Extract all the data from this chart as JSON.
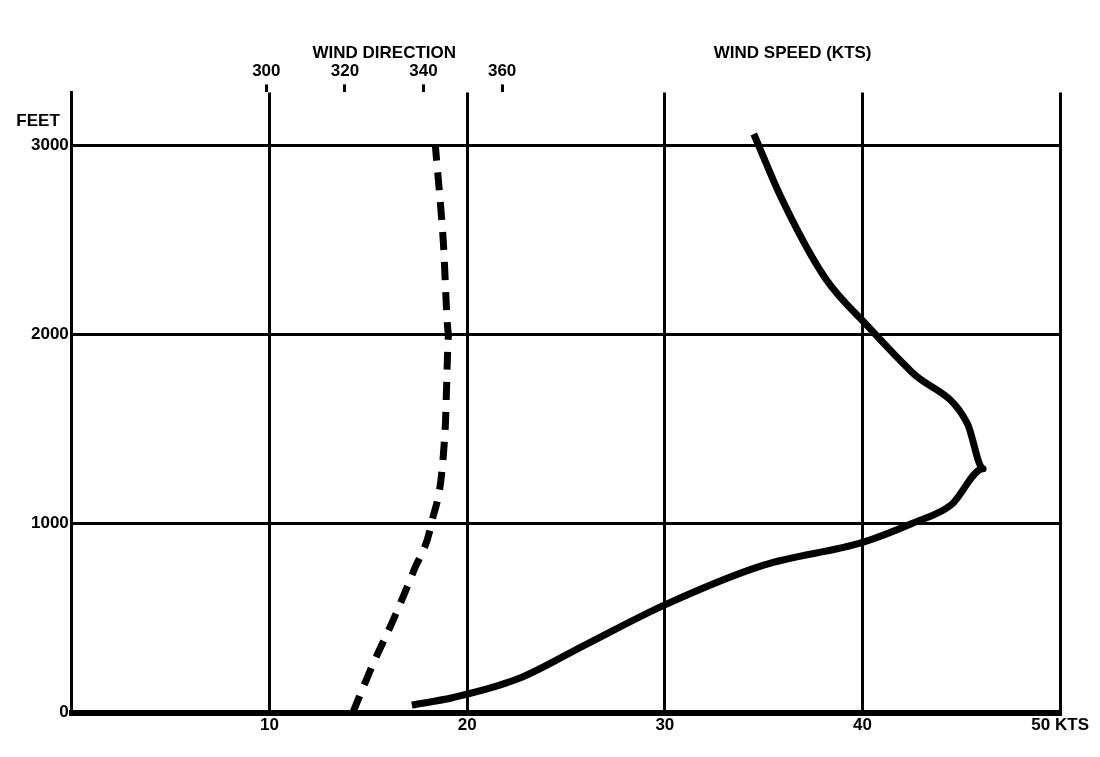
{
  "chart_data": {
    "type": "line",
    "x2label": "WIND DIRECTION",
    "ylabel": "FEET",
    "xlim": [
      0,
      50
    ],
    "xticks": [
      {
        "value": 0,
        "label": null
      },
      10,
      20,
      30,
      40,
      {
        "value": 50,
        "label": "50 KTS"
      }
    ],
    "x2lim": [
      250.5,
      502
    ],
    "x2ticks": [
      300,
      320,
      340,
      360
    ],
    "ylim": [
      0,
      3280
    ],
    "yticks": [
      0,
      1000,
      2000,
      3000
    ],
    "grid": true,
    "marker": "none",
    "series": [
      {
        "axis": "x2",
        "color": "#000000",
        "line_style": "dashed",
        "x": [
          322,
          327,
          332.5,
          337.5,
          342,
          345.5,
          346.4,
          345,
          343
        ],
        "values": [
          0,
          250,
          500,
          750,
          1000,
          1500,
          2000,
          2500,
          3000
        ]
      },
      {
        "name": "WIND SPEED (KTS)",
        "color": "#000000",
        "line_style": "solid",
        "x": [
          17.2,
          19.3,
          22.6,
          26,
          30,
          35,
          40,
          42.5,
          44.5,
          46.1,
          45.3,
          42.5,
          40.3,
          38.1,
          35.9,
          34.5
        ],
        "values": [
          40,
          80,
          180,
          360,
          570,
          780,
          900,
          1000,
          1100,
          1290,
          1530,
          1800,
          2040,
          2300,
          2720,
          3060
        ]
      }
    ]
  }
}
